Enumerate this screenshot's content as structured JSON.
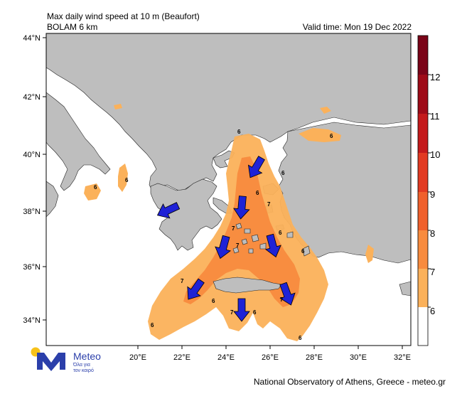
{
  "header": {
    "title": "Max daily wind speed at 10 m (Beaufort)",
    "model": "BOLAM 6 km",
    "valid_time": "Valid time: Mon 19 Dec 2022"
  },
  "axes": {
    "lat_labels": [
      "44°N",
      "42°N",
      "40°N",
      "38°N",
      "36°N",
      "34°N"
    ],
    "lon_labels": [
      "20°E",
      "22°E",
      "24°E",
      "26°E",
      "28°E",
      "30°E",
      "32°E"
    ]
  },
  "colorbar": {
    "labels": [
      "6",
      "7",
      "8",
      "9",
      "10",
      "11",
      "12"
    ],
    "colors": [
      "#ffffff",
      "#fbb15a",
      "#f88b3e",
      "#f0602c",
      "#e23a22",
      "#c41a1c",
      "#9e0b18",
      "#7a0418"
    ]
  },
  "contour_labels": [
    "6",
    "6",
    "6",
    "6",
    "7",
    "7",
    "6",
    "6",
    "6",
    "7",
    "6",
    "7",
    "7",
    "6",
    "7",
    "6",
    "6",
    "6"
  ],
  "colors": {
    "land": "#bebebe",
    "sea": "#ffffff",
    "wind7": "#fbb15a",
    "wind8": "#f88b3e",
    "arrow": "#1f22d6"
  },
  "logo": {
    "brand": "Meteo",
    "tagline_1": "Όλα για",
    "tagline_2": "τον καιρό"
  },
  "footer": {
    "credit": "National Observatory of Athens, Greece - meteo.gr"
  }
}
